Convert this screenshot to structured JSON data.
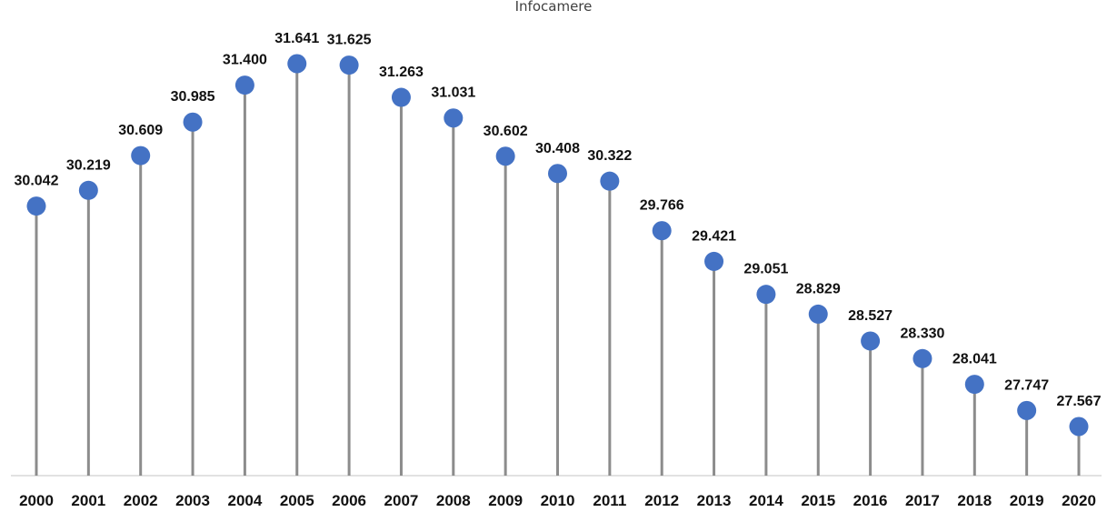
{
  "chart_data": {
    "type": "lollipop",
    "subtitle": "Infocamere",
    "categories": [
      "2000",
      "2001",
      "2002",
      "2003",
      "2004",
      "2005",
      "2006",
      "2007",
      "2008",
      "2009",
      "2010",
      "2011",
      "2012",
      "2013",
      "2014",
      "2015",
      "2016",
      "2017",
      "2018",
      "2019",
      "2020"
    ],
    "values": [
      30042,
      30219,
      30609,
      30985,
      31400,
      31641,
      31625,
      31263,
      31031,
      30602,
      30408,
      30322,
      29766,
      29421,
      29051,
      28829,
      28527,
      28330,
      28041,
      27747,
      27567
    ],
    "value_labels": [
      "30.042",
      "30.219",
      "30.609",
      "30.985",
      "31.400",
      "31.641",
      "31.625",
      "31.263",
      "31.031",
      "30.602",
      "30.408",
      "30.322",
      "29.766",
      "29.421",
      "29.051",
      "28.829",
      "28.527",
      "28.330",
      "28.041",
      "27.747",
      "27.567"
    ],
    "grid": false,
    "legend": "none",
    "colors": {
      "marker": "#4472C4",
      "stem": "#8c8c8c",
      "axis": "#d9d9d9"
    }
  }
}
